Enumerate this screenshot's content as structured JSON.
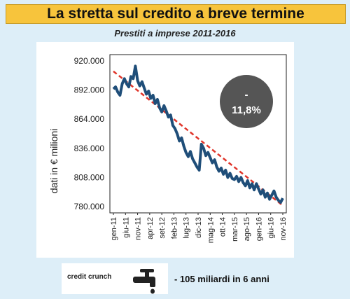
{
  "header": {
    "title": "La stretta sul credito a breve termine"
  },
  "subtitle": "Prestiti a imprese 2011-2016",
  "badge": {
    "value": "-\n11,8%"
  },
  "footer": {
    "tag": "credit crunch",
    "summary": "- 105 miliardi in 6 anni",
    "icon": "faucet-icon"
  },
  "colors": {
    "series": "#1f4e79",
    "trend": "#e0352a",
    "badge": "#555555",
    "title_bg": "#f7c43c",
    "background": "#ddeef8"
  },
  "chart_data": {
    "type": "line",
    "ylabel": "dati in € milioni",
    "ylim": [
      780000,
      920000
    ],
    "yticks": [
      780000,
      808000,
      836000,
      864000,
      892000,
      920000
    ],
    "ytick_labels": [
      "780.000",
      "808.000",
      "836.000",
      "864.000",
      "892.000",
      "920.000"
    ],
    "xtick_labels": [
      "gen-11",
      "giu-11",
      "nov-11",
      "apr-12",
      "set-12",
      "feb-13",
      "lug-13",
      "dic-13",
      "mag-14",
      "ott-14",
      "mar-15",
      "ago-15",
      "gen-16",
      "giu-16",
      "nov-16"
    ],
    "grid": false,
    "series": [
      {
        "values": [
          893000,
          895000,
          890000,
          887000,
          898000,
          903000,
          898000,
          895000,
          905000,
          903000,
          915000,
          901000,
          896000,
          900000,
          894000,
          888000,
          891000,
          884000,
          887000,
          879000,
          883000,
          875000,
          871000,
          877000,
          872000,
          866000,
          868000,
          858000,
          855000,
          850000,
          843000,
          846000,
          838000,
          832000,
          828000,
          833000,
          826000,
          822000,
          818000,
          815000,
          840000,
          836000,
          829000,
          832000,
          827000,
          822000,
          825000,
          818000,
          814000,
          817000,
          811000,
          815000,
          808000,
          812000,
          807000,
          806000,
          809000,
          804000,
          808000,
          803000,
          800000,
          805000,
          798000,
          802000,
          796000,
          802000,
          797000,
          792000,
          796000,
          789000,
          793000,
          787000,
          791000,
          795000,
          789000,
          786000,
          784000,
          788000
        ]
      }
    ],
    "trend": {
      "style": "dashed",
      "start": 910000,
      "end": 781000
    },
    "annotation": "-\n11,8%"
  }
}
